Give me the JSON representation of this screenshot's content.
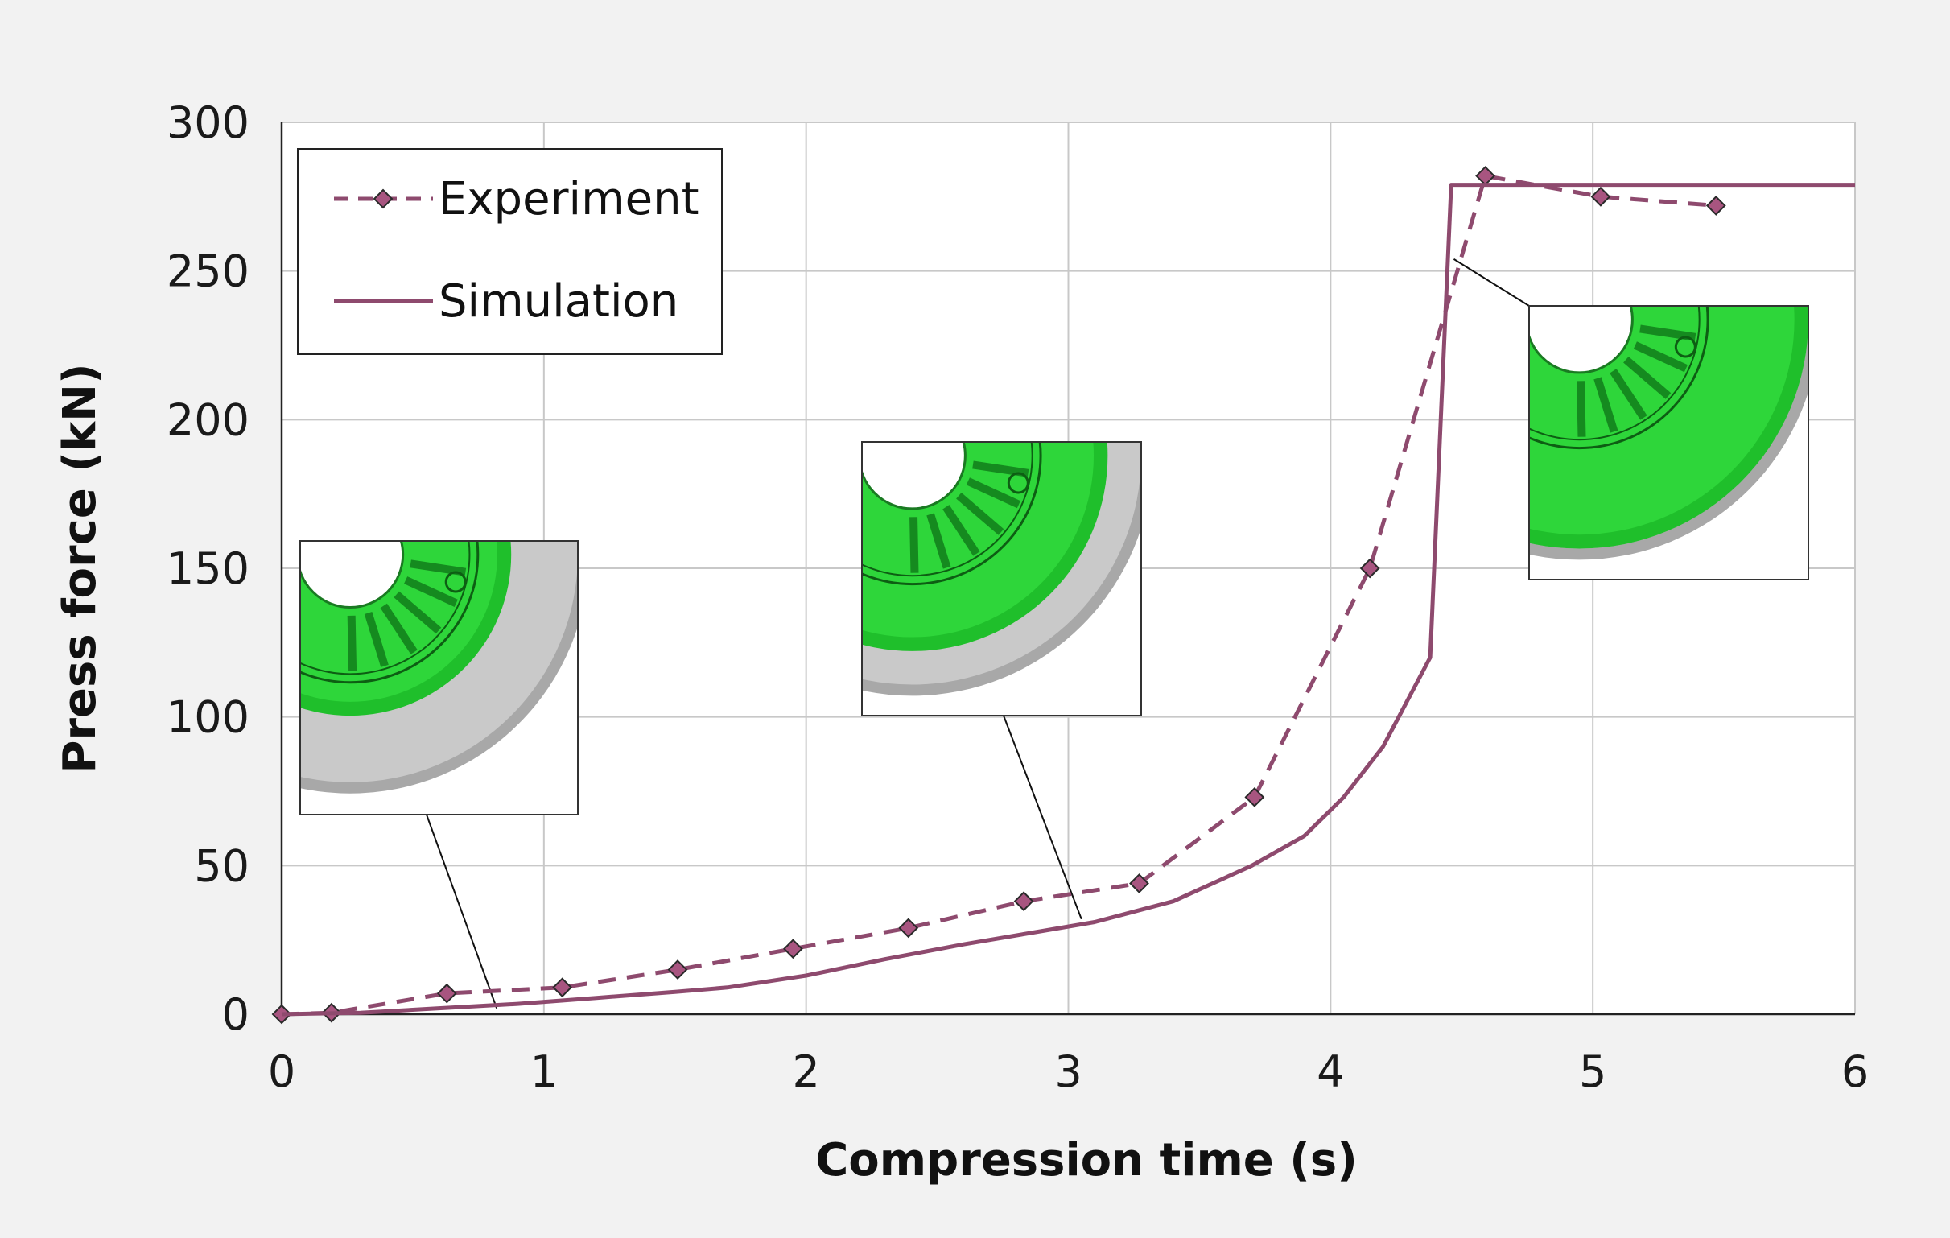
{
  "chart_data": {
    "type": "line",
    "xlabel": "Compression time (s)",
    "ylabel": "Press force (kN)",
    "xlim": [
      0,
      6
    ],
    "ylim": [
      0,
      300
    ],
    "xticks": [
      0,
      1,
      2,
      3,
      4,
      5,
      6
    ],
    "yticks": [
      0,
      50,
      100,
      150,
      200,
      250,
      300
    ],
    "xtick_labels": [
      "0",
      "1",
      "2",
      "3",
      "4",
      "5",
      "6"
    ],
    "ytick_labels": [
      "0",
      "50",
      "100",
      "150",
      "200",
      "250",
      "300"
    ],
    "grid": true,
    "legend_position": "top-left",
    "series": [
      {
        "name": "Experiment",
        "style": "dashed-with-diamond-markers",
        "color": "#8e4a6e",
        "marker_fill": "#a85580",
        "x": [
          0,
          0.19,
          0.63,
          1.07,
          1.51,
          1.95,
          2.39,
          2.83,
          3.27,
          3.71,
          4.15,
          4.59,
          5.03,
          5.47
        ],
        "y": [
          0,
          0.5,
          7,
          9,
          15,
          22,
          29,
          38,
          44,
          73,
          150,
          282,
          275,
          272
        ]
      },
      {
        "name": "Simulation",
        "style": "solid",
        "color": "#8e4a6e",
        "x": [
          0,
          0.3,
          0.6,
          0.9,
          1.2,
          1.5,
          1.7,
          2.0,
          2.3,
          2.6,
          2.9,
          3.1,
          3.4,
          3.7,
          3.9,
          4.05,
          4.2,
          4.38,
          4.46,
          4.6,
          5.0,
          5.5,
          6.0
        ],
        "y": [
          0,
          0.5,
          2,
          3.5,
          5.5,
          7.5,
          9,
          13,
          18.5,
          23.5,
          28,
          31,
          38,
          50,
          60,
          73,
          90,
          120,
          279,
          279,
          279,
          279,
          279
        ]
      }
    ],
    "insets": [
      {
        "name": "deformation-inset-early",
        "image": "green-wheel-partial-deformation",
        "pointer_to": [
          0.82,
          2
        ]
      },
      {
        "name": "deformation-inset-mid",
        "image": "green-wheel-mid-deformation",
        "pointer_to": [
          3.05,
          32
        ]
      },
      {
        "name": "deformation-inset-full",
        "image": "green-wheel-full-deformation",
        "pointer_to": [
          4.47,
          254
        ]
      }
    ]
  }
}
